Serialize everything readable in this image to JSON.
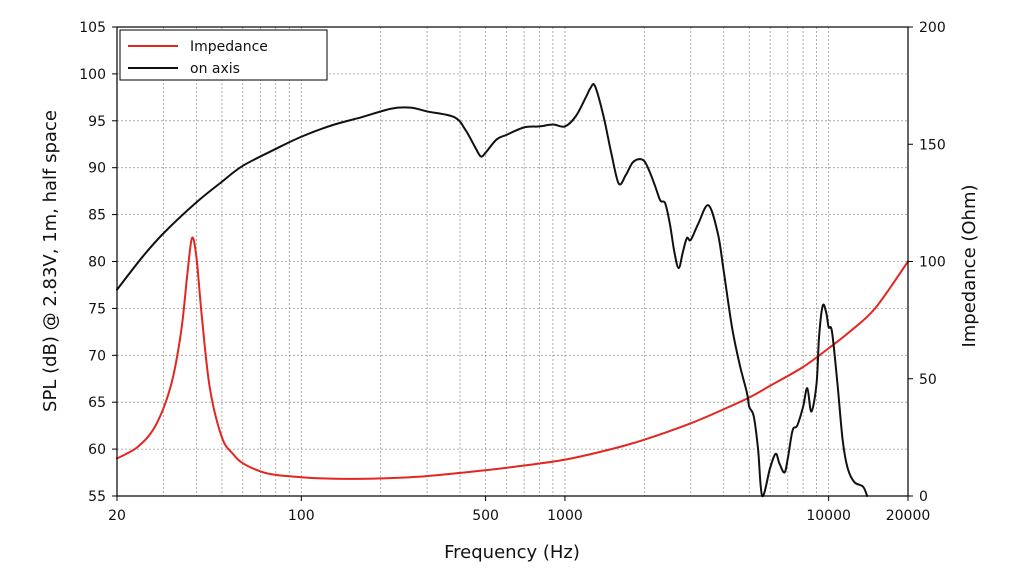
{
  "chart_data": {
    "type": "line",
    "title": "",
    "xlabel": "Frequency (Hz)",
    "ylabel_left": "SPL (dB) @ 2.83V, 1m, half space",
    "ylabel_right": "Impedance (Ohm)",
    "x_scale": "log",
    "xlim": [
      20,
      20000
    ],
    "ylim_left": [
      55,
      105
    ],
    "ylim_right": [
      0,
      200
    ],
    "grid": true,
    "legend_position": "top-left",
    "x_ticks": [
      20,
      100,
      500,
      1000,
      10000,
      20000
    ],
    "x_tick_labels": [
      "20",
      "100",
      "500",
      "1000",
      "10000",
      "20000"
    ],
    "y_left_ticks": [
      55,
      60,
      65,
      70,
      75,
      80,
      85,
      90,
      95,
      100,
      105
    ],
    "y_left_tick_labels": [
      "55",
      "60",
      "65",
      "70",
      "75",
      "80",
      "85",
      "90",
      "95",
      "100",
      "105"
    ],
    "y_right_ticks": [
      0,
      50,
      100,
      150,
      200
    ],
    "y_right_tick_labels": [
      "0",
      "50",
      "100",
      "150",
      "200"
    ],
    "series": [
      {
        "name": "Impedance",
        "axis": "right",
        "color": "#e3261f",
        "x": [
          20,
          24,
          28,
          32,
          35,
          37,
          38.5,
          40,
          42,
          45,
          50,
          55,
          60,
          70,
          80,
          100,
          120,
          150,
          200,
          300,
          500,
          700,
          1000,
          1500,
          2000,
          3000,
          4000,
          5000,
          6000,
          8000,
          10000,
          12000,
          15000,
          20000
        ],
        "values": [
          16,
          21,
          30,
          47,
          70,
          95,
          110,
          102,
          76,
          46,
          25,
          18,
          14,
          10.5,
          9,
          8,
          7.5,
          7.3,
          7.5,
          8.5,
          11,
          13,
          15.5,
          20,
          24,
          31,
          37,
          42,
          47,
          55,
          63,
          70,
          80,
          100
        ]
      },
      {
        "name": "on axis",
        "axis": "left",
        "color": "#111111",
        "x": [
          20,
          25,
          30,
          40,
          50,
          60,
          80,
          100,
          130,
          170,
          220,
          260,
          300,
          380,
          420,
          460,
          480,
          500,
          550,
          600,
          700,
          800,
          900,
          1000,
          1100,
          1200,
          1250,
          1300,
          1400,
          1500,
          1600,
          1700,
          1800,
          1900,
          2000,
          2100,
          2200,
          2300,
          2400,
          2500,
          2600,
          2700,
          2800,
          2900,
          3000,
          3200,
          3500,
          3800,
          4000,
          4300,
          4600,
          4900,
          5000,
          5200,
          5400,
          5600,
          6000,
          6300,
          6500,
          6800,
          7000,
          7300,
          7600,
          8000,
          8300,
          8600,
          9000,
          9200,
          9500,
          9800,
          10000,
          10300,
          10800,
          11300,
          11800,
          12500,
          13500,
          14000
        ],
        "values": [
          77,
          80.5,
          83,
          86.3,
          88.5,
          90.2,
          92,
          93.3,
          94.5,
          95.4,
          96.3,
          96.4,
          96,
          95.4,
          94,
          92,
          91.2,
          91.6,
          93,
          93.5,
          94.3,
          94.4,
          94.6,
          94.4,
          95.5,
          97.5,
          98.5,
          98.7,
          95.5,
          91.5,
          88.3,
          89.2,
          90.5,
          90.9,
          90.7,
          89.5,
          88,
          86.5,
          86.2,
          84,
          81,
          79.3,
          81,
          82.5,
          82.3,
          84,
          86,
          83,
          79,
          73,
          69,
          66,
          64.5,
          63.5,
          60,
          55,
          58,
          59.5,
          58.5,
          57.5,
          59,
          62,
          62.5,
          64.5,
          66.5,
          64,
          67,
          72,
          75.3,
          74.5,
          73,
          72.5,
          67,
          61,
          58,
          56.5,
          56,
          55
        ]
      }
    ]
  }
}
